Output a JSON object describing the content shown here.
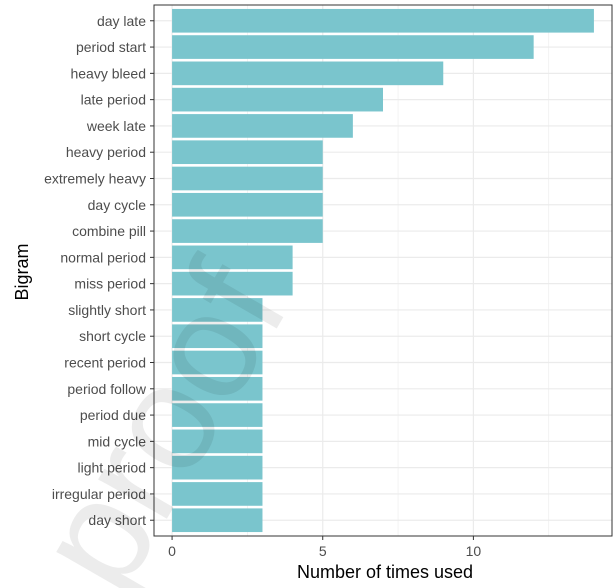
{
  "chart_data": {
    "type": "bar",
    "orientation": "horizontal",
    "categories": [
      "day late",
      "period start",
      "heavy bleed",
      "late period",
      "week late",
      "heavy period",
      "extremely heavy",
      "day cycle",
      "combine pill",
      "normal period",
      "miss period",
      "slightly short",
      "short cycle",
      "recent period",
      "period follow",
      "period due",
      "mid cycle",
      "light period",
      "irregular period",
      "day short"
    ],
    "values": [
      14,
      12,
      9,
      7,
      6,
      5,
      5,
      5,
      5,
      4,
      4,
      3,
      3,
      3,
      3,
      3,
      3,
      3,
      3,
      3
    ],
    "xlabel": "Number of times used",
    "ylabel": "Bigram",
    "xlim": [
      -0.6,
      14.6
    ],
    "xticks": [
      0,
      5,
      10
    ],
    "grid": true,
    "legend": "none",
    "bar_color": "#7ac5cd",
    "grid_color": "#ebebeb",
    "panel_border_color": "#333333"
  },
  "watermark": "proof"
}
